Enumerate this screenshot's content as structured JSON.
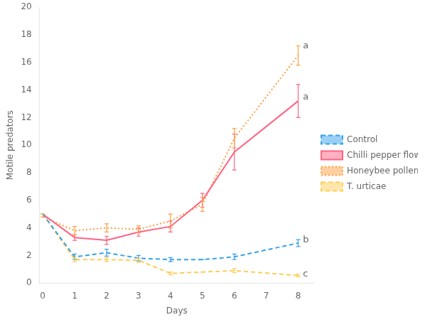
{
  "chart_data": {
    "type": "line",
    "xlabel": "Days",
    "ylabel": "Motile predators",
    "xlim": [
      -0.1,
      8.5
    ],
    "xticks": [
      0,
      1,
      2,
      3,
      4,
      5,
      6,
      7,
      8
    ],
    "ylim": [
      0,
      20
    ],
    "yticks": [
      0,
      2,
      4,
      6,
      8,
      10,
      12,
      14,
      16,
      18,
      20
    ],
    "grid": false,
    "legend": "right",
    "marker": "none",
    "series": [
      {
        "name": "Control",
        "line_style": "dashed",
        "x": [
          0,
          1,
          2,
          3,
          4,
          5,
          6,
          8
        ],
        "values": [
          5.0,
          1.9,
          2.2,
          1.8,
          1.7,
          1.7,
          1.9,
          2.9
        ],
        "errors": [
          0.0,
          0.2,
          0.25,
          0.2,
          0.15,
          0.0,
          0.2,
          0.25
        ]
      },
      {
        "name": "Chilli pepper flowers",
        "line_style": "solid",
        "x": [
          0,
          1,
          2,
          3,
          4,
          5,
          6,
          8
        ],
        "values": [
          5.0,
          3.3,
          3.1,
          3.7,
          4.1,
          6.0,
          9.5,
          13.2
        ],
        "errors": [
          0.0,
          0.2,
          0.3,
          0.3,
          0.4,
          0.5,
          1.3,
          1.2
        ]
      },
      {
        "name": "Honeybee pollen",
        "line_style": "dotted",
        "x": [
          0,
          1,
          2,
          3,
          4,
          5,
          6,
          8
        ],
        "values": [
          4.8,
          3.8,
          4.0,
          3.9,
          4.5,
          5.7,
          10.5,
          16.5
        ],
        "errors": [
          0.0,
          0.3,
          0.3,
          0.25,
          0.5,
          0.5,
          0.7,
          0.7
        ]
      },
      {
        "name": "T. urticae",
        "line_style": "dashed",
        "x": [
          0,
          1,
          2,
          3,
          4,
          5,
          6,
          8
        ],
        "values": [
          5.0,
          1.7,
          1.7,
          1.65,
          0.7,
          0.8,
          0.9,
          0.55
        ],
        "errors": [
          0.0,
          0.15,
          0.15,
          0.15,
          0.1,
          0.0,
          0.15,
          0.1
        ]
      }
    ],
    "annotations": [
      {
        "text": "a",
        "x": 8.15,
        "y": 17.2
      },
      {
        "text": "a",
        "x": 8.15,
        "y": 13.5
      },
      {
        "text": "b",
        "x": 8.15,
        "y": 3.1
      },
      {
        "text": "c",
        "x": 8.15,
        "y": 0.65
      }
    ]
  }
}
